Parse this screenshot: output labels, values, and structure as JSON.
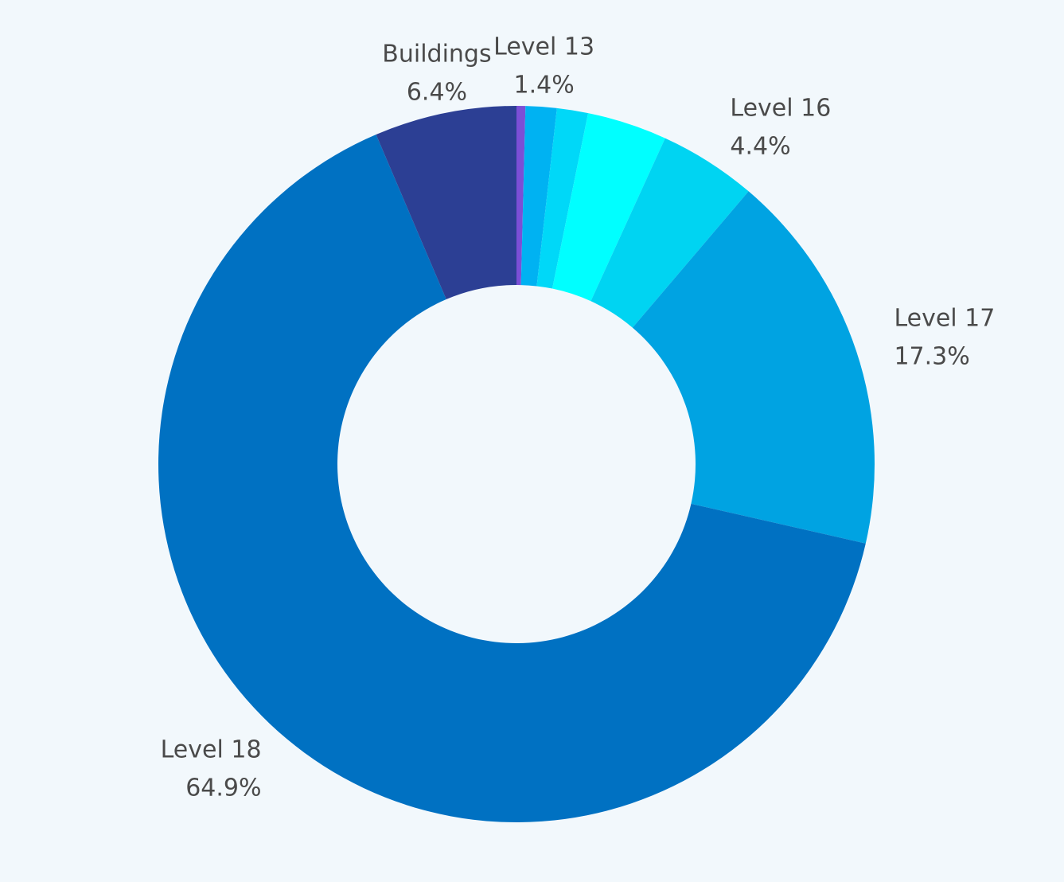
{
  "chart_data": {
    "type": "donut",
    "categories": [
      null,
      "Level 13",
      null,
      null,
      "Level 16",
      "Level 17",
      "Level 18",
      "Buildings"
    ],
    "values": [
      0.4,
      1.4,
      1.4,
      3.6,
      4.4,
      17.3,
      64.9,
      6.4
    ],
    "value_labels": [
      null,
      "1.4%",
      null,
      null,
      "4.4%",
      "17.3%",
      "64.9%",
      "6.4%"
    ],
    "colors": [
      "#7b4fd6",
      "#00b2f2",
      "#00d8f8",
      "#00ffff",
      "#00d4f2",
      "#00a3e2",
      "#0071c2",
      "#2c3f94"
    ]
  }
}
